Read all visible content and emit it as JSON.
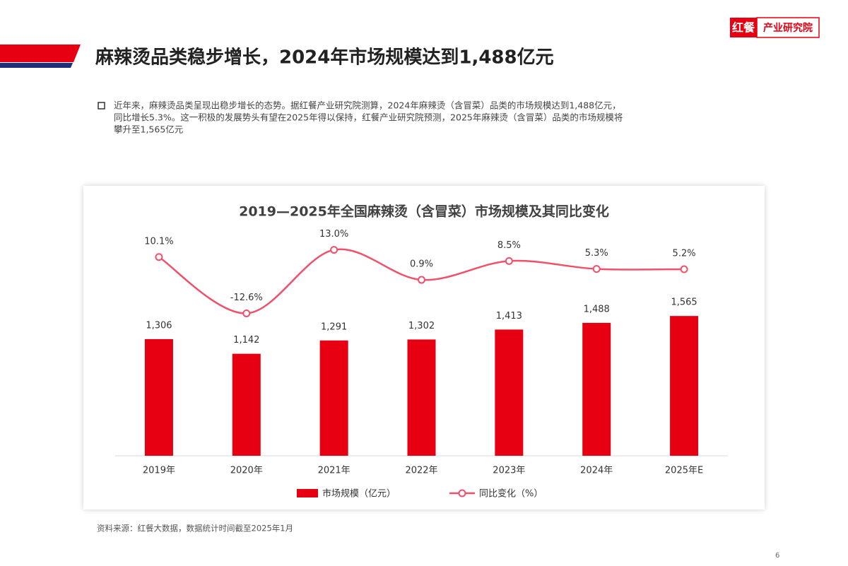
{
  "header": {
    "title": "麻辣烫品类稳步增长，2024年市场规模达到1,488亿元",
    "logo_mark": "红餐",
    "logo_text": "产业研究院"
  },
  "body": {
    "lines": [
      "近年来，麻辣烫品类呈现出稳步增长的态势。据红餐产业研究院测算，2024年麻辣烫（含冒菜）品类的市场规模达到1,488亿元，",
      "同比增长5.3%。这一积极的发展势头有望在2025年得以保持，红餐产业研究院预测，2025年麻辣烫（含冒菜）品类的市场规模将",
      "攀升至1,565亿元"
    ]
  },
  "chart_data": {
    "type": "bar-line",
    "title": "2019—2025年全国麻辣烫（含冒菜）市场规模及其同比变化",
    "categories": [
      "2019年",
      "2020年",
      "2021年",
      "2022年",
      "2023年",
      "2024年",
      "2025年E"
    ],
    "series": [
      {
        "name": "市场规模（亿元）",
        "type": "bar",
        "color": "#e60012",
        "values": [
          1306,
          1142,
          1291,
          1302,
          1413,
          1488,
          1565
        ],
        "value_labels": [
          "1,306",
          "1,142",
          "1,291",
          "1,302",
          "1,413",
          "1,488",
          "1,565"
        ]
      },
      {
        "name": "同比变化（%）",
        "type": "line",
        "axis": "y2",
        "color": "#f0506a",
        "values": [
          10.1,
          -12.6,
          13.0,
          0.9,
          8.5,
          5.3,
          5.2
        ],
        "value_labels": [
          "10.1%",
          "-12.6%",
          "13.0%",
          "0.9%",
          "8.5%",
          "5.3%",
          "5.2%"
        ]
      }
    ],
    "ylim": [
      0,
      2500
    ],
    "y2lim": [
      -70,
      20
    ],
    "legend": "bottom"
  },
  "source": "资料来源：红餐大数据，数据统计时间截至2025年1月",
  "page_number": "6"
}
